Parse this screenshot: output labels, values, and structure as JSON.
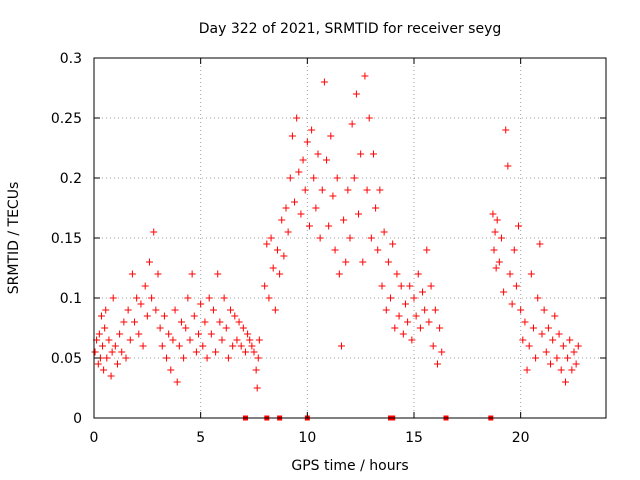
{
  "chart_data": {
    "type": "scatter",
    "title": "Day 322 of 2021, SRMTID for receiver seyg",
    "xlabel": "GPS time / hours",
    "ylabel": "SRMTID / TECUs",
    "xlim": [
      0,
      24
    ],
    "ylim": [
      0,
      0.3
    ],
    "xticks": [
      0,
      5,
      10,
      15,
      20
    ],
    "xtick_labels": [
      "0",
      "5",
      "10",
      "15",
      "20"
    ],
    "yticks": [
      0,
      0.05,
      0.1,
      0.15,
      0.2,
      0.25,
      0.3
    ],
    "ytick_labels": [
      "0",
      "0.05",
      "0.1",
      "0.15",
      "0.2",
      "0.25",
      "0.3"
    ],
    "grid": true,
    "marker": "+",
    "color": "#ff0000",
    "series": [
      {
        "name": "SRMTID",
        "points": [
          [
            0.05,
            0.055
          ],
          [
            0.12,
            0.065
          ],
          [
            0.2,
            0.045
          ],
          [
            0.25,
            0.07
          ],
          [
            0.3,
            0.05
          ],
          [
            0.35,
            0.085
          ],
          [
            0.4,
            0.06
          ],
          [
            0.45,
            0.04
          ],
          [
            0.5,
            0.075
          ],
          [
            0.55,
            0.09
          ],
          [
            0.6,
            0.05
          ],
          [
            0.7,
            0.065
          ],
          [
            0.8,
            0.035
          ],
          [
            0.85,
            0.055
          ],
          [
            0.9,
            0.1
          ],
          [
            1.0,
            0.06
          ],
          [
            1.1,
            0.045
          ],
          [
            1.2,
            0.07
          ],
          [
            1.3,
            0.055
          ],
          [
            1.4,
            0.08
          ],
          [
            1.5,
            0.05
          ],
          [
            1.6,
            0.09
          ],
          [
            1.7,
            0.065
          ],
          [
            1.8,
            0.12
          ],
          [
            1.9,
            0.08
          ],
          [
            2.0,
            0.1
          ],
          [
            2.1,
            0.07
          ],
          [
            2.2,
            0.095
          ],
          [
            2.3,
            0.06
          ],
          [
            2.4,
            0.11
          ],
          [
            2.5,
            0.085
          ],
          [
            2.6,
            0.13
          ],
          [
            2.7,
            0.1
          ],
          [
            2.8,
            0.155
          ],
          [
            2.9,
            0.09
          ],
          [
            3.0,
            0.12
          ],
          [
            3.1,
            0.075
          ],
          [
            3.2,
            0.06
          ],
          [
            3.3,
            0.085
          ],
          [
            3.4,
            0.05
          ],
          [
            3.5,
            0.07
          ],
          [
            3.6,
            0.04
          ],
          [
            3.7,
            0.065
          ],
          [
            3.8,
            0.09
          ],
          [
            3.9,
            0.03
          ],
          [
            4.0,
            0.06
          ],
          [
            4.1,
            0.08
          ],
          [
            4.2,
            0.05
          ],
          [
            4.3,
            0.075
          ],
          [
            4.4,
            0.1
          ],
          [
            4.5,
            0.065
          ],
          [
            4.6,
            0.12
          ],
          [
            4.7,
            0.085
          ],
          [
            4.8,
            0.055
          ],
          [
            4.9,
            0.07
          ],
          [
            5.0,
            0.095
          ],
          [
            5.1,
            0.06
          ],
          [
            5.2,
            0.08
          ],
          [
            5.3,
            0.05
          ],
          [
            5.4,
            0.1
          ],
          [
            5.5,
            0.07
          ],
          [
            5.6,
            0.09
          ],
          [
            5.7,
            0.055
          ],
          [
            5.8,
            0.12
          ],
          [
            5.9,
            0.08
          ],
          [
            6.0,
            0.065
          ],
          [
            6.1,
            0.1
          ],
          [
            6.2,
            0.075
          ],
          [
            6.3,
            0.05
          ],
          [
            6.4,
            0.09
          ],
          [
            6.5,
            0.06
          ],
          [
            6.6,
            0.085
          ],
          [
            6.7,
            0.065
          ],
          [
            6.8,
            0.08
          ],
          [
            6.9,
            0.06
          ],
          [
            7.0,
            0.075
          ],
          [
            7.1,
            0.055
          ],
          [
            7.2,
            0.07
          ],
          [
            7.3,
            0.065
          ],
          [
            7.4,
            0.06
          ],
          [
            7.5,
            0.055
          ],
          [
            7.6,
            0.04
          ],
          [
            7.65,
            0.025
          ],
          [
            7.7,
            0.05
          ],
          [
            7.75,
            0.065
          ],
          [
            8.0,
            0.11
          ],
          [
            8.1,
            0.145
          ],
          [
            8.2,
            0.1
          ],
          [
            8.3,
            0.15
          ],
          [
            8.4,
            0.125
          ],
          [
            8.5,
            0.09
          ],
          [
            8.6,
            0.14
          ],
          [
            8.7,
            0.12
          ],
          [
            8.8,
            0.165
          ],
          [
            8.9,
            0.135
          ],
          [
            9.0,
            0.175
          ],
          [
            9.1,
            0.155
          ],
          [
            9.2,
            0.2
          ],
          [
            9.3,
            0.235
          ],
          [
            9.4,
            0.18
          ],
          [
            9.5,
            0.25
          ],
          [
            9.6,
            0.205
          ],
          [
            9.7,
            0.17
          ],
          [
            9.8,
            0.215
          ],
          [
            9.9,
            0.19
          ],
          [
            10.0,
            0.23
          ],
          [
            10.1,
            0.16
          ],
          [
            10.2,
            0.24
          ],
          [
            10.3,
            0.2
          ],
          [
            10.4,
            0.175
          ],
          [
            10.5,
            0.22
          ],
          [
            10.6,
            0.15
          ],
          [
            10.7,
            0.19
          ],
          [
            10.8,
            0.28
          ],
          [
            10.9,
            0.215
          ],
          [
            11.0,
            0.16
          ],
          [
            11.1,
            0.235
          ],
          [
            11.2,
            0.185
          ],
          [
            11.3,
            0.14
          ],
          [
            11.4,
            0.2
          ],
          [
            11.5,
            0.12
          ],
          [
            11.6,
            0.06
          ],
          [
            11.7,
            0.165
          ],
          [
            11.8,
            0.13
          ],
          [
            11.9,
            0.19
          ],
          [
            12.0,
            0.15
          ],
          [
            12.1,
            0.245
          ],
          [
            12.2,
            0.2
          ],
          [
            12.3,
            0.27
          ],
          [
            12.4,
            0.17
          ],
          [
            12.5,
            0.22
          ],
          [
            12.6,
            0.13
          ],
          [
            12.7,
            0.285
          ],
          [
            12.8,
            0.19
          ],
          [
            12.9,
            0.25
          ],
          [
            13.0,
            0.15
          ],
          [
            13.1,
            0.22
          ],
          [
            13.2,
            0.175
          ],
          [
            13.3,
            0.14
          ],
          [
            13.4,
            0.19
          ],
          [
            13.5,
            0.11
          ],
          [
            13.6,
            0.155
          ],
          [
            13.7,
            0.09
          ],
          [
            13.8,
            0.13
          ],
          [
            13.9,
            0.1
          ],
          [
            14.0,
            0.145
          ],
          [
            14.1,
            0.075
          ],
          [
            14.2,
            0.12
          ],
          [
            14.3,
            0.085
          ],
          [
            14.4,
            0.11
          ],
          [
            14.5,
            0.07
          ],
          [
            14.6,
            0.095
          ],
          [
            14.7,
            0.08
          ],
          [
            14.8,
            0.11
          ],
          [
            14.9,
            0.065
          ],
          [
            15.0,
            0.1
          ],
          [
            15.1,
            0.085
          ],
          [
            15.2,
            0.12
          ],
          [
            15.3,
            0.075
          ],
          [
            15.4,
            0.105
          ],
          [
            15.5,
            0.09
          ],
          [
            15.6,
            0.14
          ],
          [
            15.7,
            0.08
          ],
          [
            15.8,
            0.11
          ],
          [
            15.9,
            0.06
          ],
          [
            16.0,
            0.09
          ],
          [
            16.1,
            0.045
          ],
          [
            16.2,
            0.075
          ],
          [
            16.3,
            0.055
          ],
          [
            18.7,
            0.17
          ],
          [
            18.75,
            0.14
          ],
          [
            18.8,
            0.155
          ],
          [
            18.85,
            0.125
          ],
          [
            18.9,
            0.165
          ],
          [
            19.0,
            0.13
          ],
          [
            19.1,
            0.15
          ],
          [
            19.2,
            0.105
          ],
          [
            19.3,
            0.24
          ],
          [
            19.4,
            0.21
          ],
          [
            19.5,
            0.12
          ],
          [
            19.6,
            0.095
          ],
          [
            19.7,
            0.14
          ],
          [
            19.8,
            0.11
          ],
          [
            19.9,
            0.16
          ],
          [
            20.0,
            0.09
          ],
          [
            20.1,
            0.065
          ],
          [
            20.2,
            0.08
          ],
          [
            20.3,
            0.04
          ],
          [
            20.4,
            0.06
          ],
          [
            20.5,
            0.12
          ],
          [
            20.6,
            0.075
          ],
          [
            20.7,
            0.05
          ],
          [
            20.8,
            0.1
          ],
          [
            20.9,
            0.145
          ],
          [
            21.0,
            0.07
          ],
          [
            21.1,
            0.09
          ],
          [
            21.2,
            0.055
          ],
          [
            21.3,
            0.075
          ],
          [
            21.4,
            0.045
          ],
          [
            21.5,
            0.065
          ],
          [
            21.6,
            0.085
          ],
          [
            21.7,
            0.05
          ],
          [
            21.8,
            0.07
          ],
          [
            21.9,
            0.04
          ],
          [
            22.0,
            0.06
          ],
          [
            22.1,
            0.03
          ],
          [
            22.2,
            0.05
          ],
          [
            22.3,
            0.065
          ],
          [
            22.4,
            0.04
          ],
          [
            22.5,
            0.055
          ],
          [
            22.6,
            0.045
          ],
          [
            22.7,
            0.06
          ]
        ]
      }
    ],
    "zero_points_x": [
      7.1,
      8.1,
      8.7,
      10.0,
      13.9,
      14.0,
      16.5,
      18.6
    ]
  }
}
